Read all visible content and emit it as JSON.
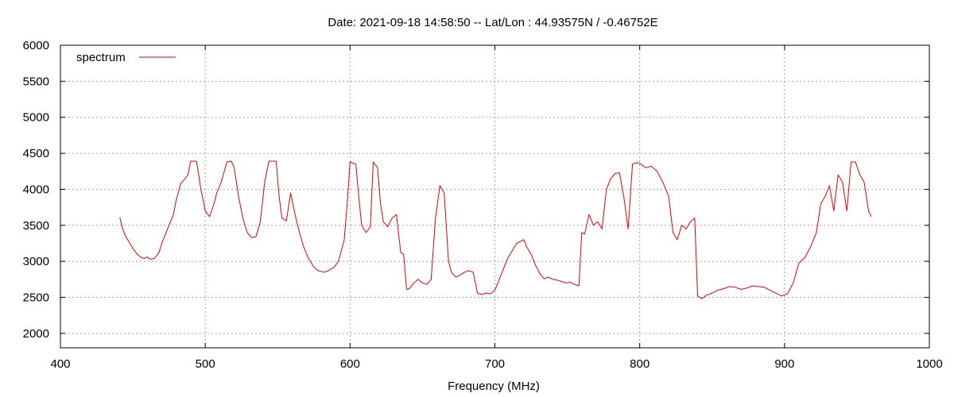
{
  "chart_data": {
    "type": "line",
    "title": "Date: 2021-09-18 14:58:50  --  Lat/Lon : 44.93575N / -0.46752E",
    "xlabel": "Frequency (MHz)",
    "ylabel": "",
    "xlim": [
      400,
      1000
    ],
    "ylim": [
      1800,
      6000
    ],
    "xticks": [
      400,
      500,
      600,
      700,
      800,
      900,
      1000
    ],
    "yticks": [
      2000,
      2500,
      3000,
      3500,
      4000,
      4500,
      5000,
      5500,
      6000
    ],
    "grid": true,
    "legend": "top-left",
    "line_color": "#e00000",
    "series": [
      {
        "name": "spectrum",
        "x": [
          441,
          443,
          445,
          448,
          450,
          453,
          456,
          458,
          460,
          462,
          465,
          468,
          470,
          473,
          475,
          478,
          480,
          483,
          485,
          488,
          490,
          494,
          497,
          500,
          503,
          506,
          508,
          511,
          515,
          518,
          520,
          523,
          526,
          529,
          532,
          535,
          538,
          541,
          544,
          549,
          551,
          553,
          556,
          559,
          562,
          565,
          568,
          571,
          575,
          578,
          582,
          585,
          589,
          592,
          596,
          598,
          600,
          604,
          606,
          608,
          611,
          614,
          616,
          619,
          621,
          623,
          626,
          629,
          632,
          635,
          637,
          639,
          641,
          644,
          647,
          650,
          653,
          656,
          659,
          662,
          665,
          668,
          670,
          673,
          676,
          679,
          682,
          685,
          688,
          691,
          694,
          697,
          700,
          703,
          706,
          709,
          712,
          715,
          718,
          720,
          722,
          725,
          728,
          731,
          734,
          737,
          740,
          743,
          746,
          749,
          752,
          755,
          758,
          760,
          762,
          765,
          768,
          771,
          774,
          777,
          780,
          783,
          786,
          789,
          792,
          795,
          798,
          801,
          804,
          808,
          812,
          816,
          820,
          823,
          826,
          829,
          832,
          835,
          838,
          840,
          843,
          846,
          850,
          854,
          858,
          862,
          866,
          870,
          874,
          878,
          882,
          886,
          890,
          894,
          898,
          902,
          906,
          910,
          914,
          918,
          922,
          925,
          928,
          931,
          934,
          937,
          940,
          943,
          946,
          949,
          952,
          955,
          958,
          960
        ],
        "values": [
          3610,
          3450,
          3350,
          3250,
          3180,
          3100,
          3050,
          3040,
          3060,
          3030,
          3040,
          3120,
          3250,
          3400,
          3500,
          3650,
          3850,
          4080,
          4120,
          4200,
          4390,
          4390,
          4000,
          3700,
          3620,
          3800,
          3950,
          4100,
          4380,
          4390,
          4300,
          3900,
          3600,
          3400,
          3330,
          3340,
          3550,
          4100,
          4390,
          4390,
          3900,
          3600,
          3560,
          3950,
          3650,
          3400,
          3200,
          3050,
          2920,
          2870,
          2850,
          2870,
          2920,
          3000,
          3300,
          3800,
          4380,
          4350,
          3900,
          3500,
          3400,
          3480,
          4380,
          4300,
          3800,
          3550,
          3480,
          3600,
          3650,
          3120,
          3100,
          2610,
          2620,
          2700,
          2750,
          2700,
          2680,
          2750,
          3600,
          4050,
          3950,
          3000,
          2850,
          2780,
          2810,
          2850,
          2870,
          2850,
          2560,
          2540,
          2560,
          2550,
          2600,
          2750,
          2900,
          3050,
          3150,
          3250,
          3280,
          3300,
          3200,
          3100,
          2950,
          2830,
          2760,
          2780,
          2750,
          2740,
          2720,
          2700,
          2710,
          2680,
          2660,
          3400,
          3380,
          3650,
          3500,
          3550,
          3450,
          4000,
          4150,
          4220,
          4230,
          3900,
          3450,
          4350,
          4370,
          4350,
          4300,
          4320,
          4250,
          4100,
          3900,
          3400,
          3300,
          3500,
          3450,
          3550,
          3600,
          2520,
          2480,
          2530,
          2560,
          2600,
          2620,
          2650,
          2640,
          2610,
          2630,
          2660,
          2650,
          2640,
          2600,
          2560,
          2520,
          2550,
          2700,
          2980,
          3050,
          3200,
          3400,
          3800,
          3900,
          4050,
          3700,
          4200,
          4100,
          3700,
          4380,
          4380,
          4200,
          4100,
          3700,
          3620
        ]
      }
    ]
  }
}
